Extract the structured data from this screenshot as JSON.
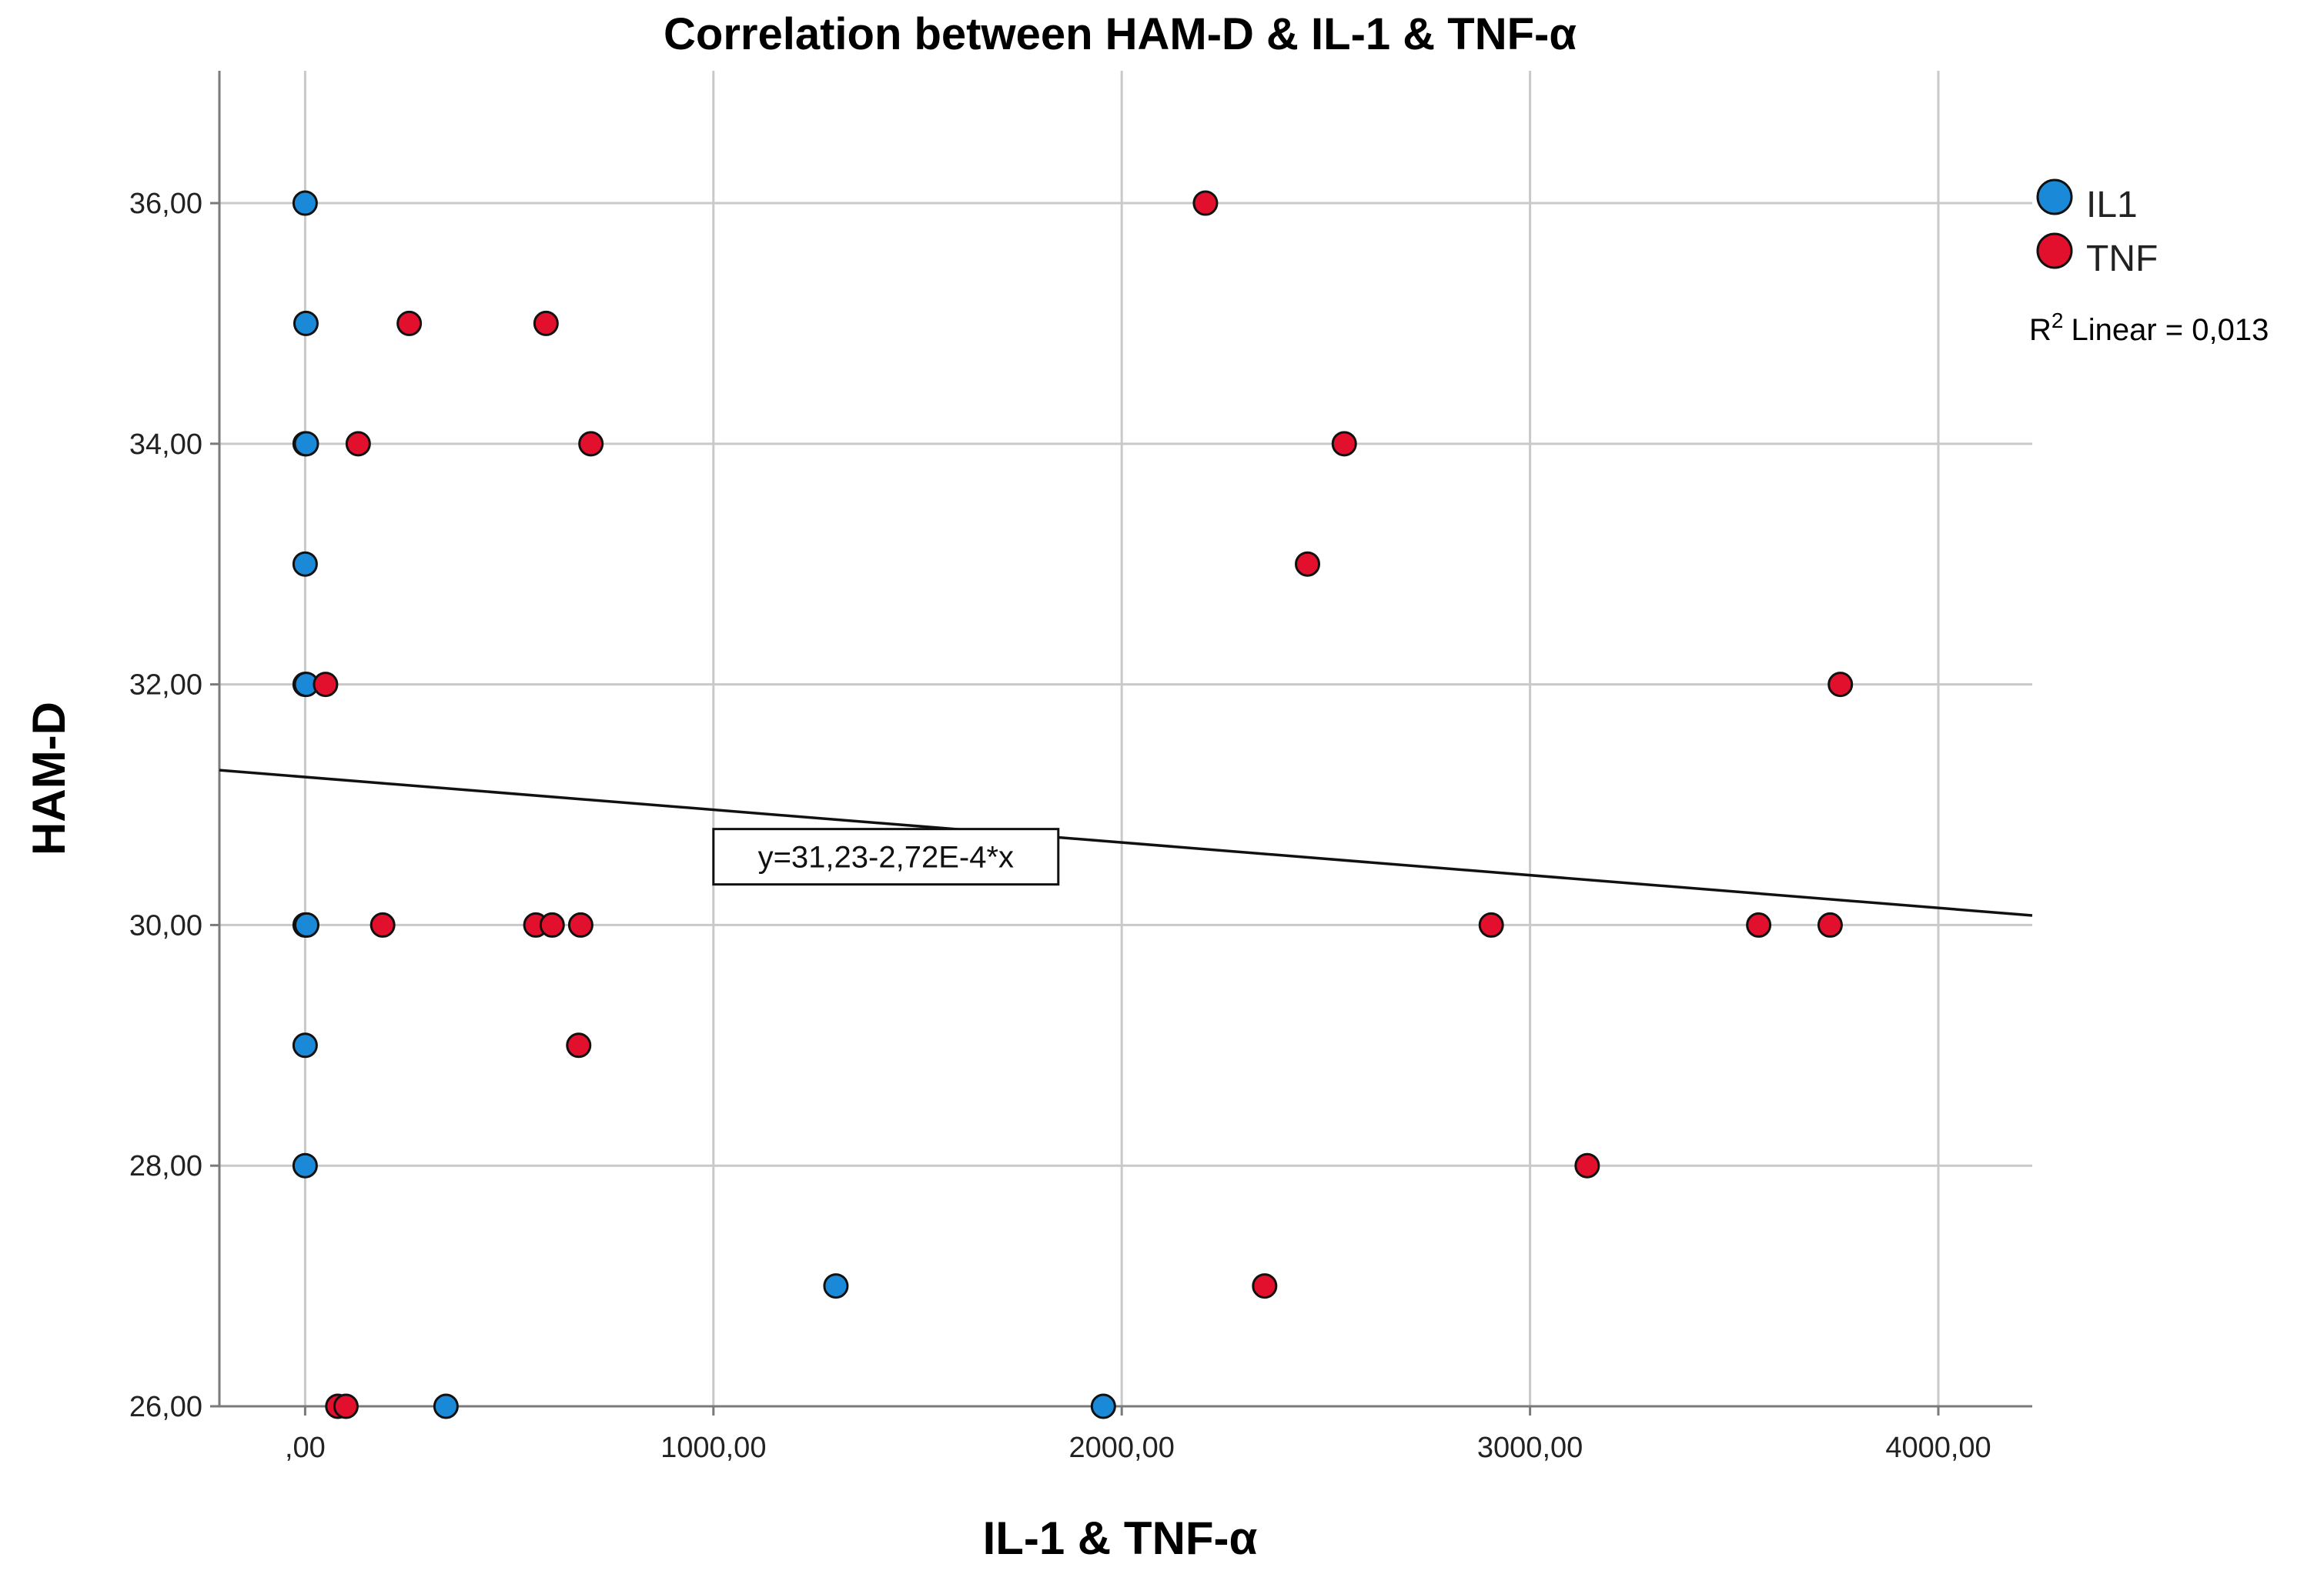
{
  "chart_data": {
    "type": "scatter",
    "title": "Correlation between HAM-D & IL-1 & TNF-α",
    "xlabel": "IL-1 & TNF-α",
    "ylabel": "HAM-D",
    "xlim": [
      -210,
      4230
    ],
    "ylim": [
      26,
      37.1
    ],
    "grid": true,
    "x_ticks": [
      0,
      1000,
      2000,
      3000,
      4000
    ],
    "x_tick_labels": [
      ",00",
      "1000,00",
      "2000,00",
      "3000,00",
      "4000,00"
    ],
    "y_ticks": [
      26,
      28,
      30,
      32,
      34,
      36
    ],
    "y_tick_labels": [
      "26,00",
      "28,00",
      "30,00",
      "32,00",
      "34,00",
      "36,00"
    ],
    "legend_position": "top-right",
    "series": [
      {
        "name": "IL1",
        "color": "#1a8ad8",
        "points": [
          {
            "x": 0,
            "y": 36
          },
          {
            "x": 2,
            "y": 35
          },
          {
            "x": 0,
            "y": 34
          },
          {
            "x": 3,
            "y": 34
          },
          {
            "x": 0,
            "y": 33
          },
          {
            "x": 0,
            "y": 32
          },
          {
            "x": 3,
            "y": 32
          },
          {
            "x": 0,
            "y": 30
          },
          {
            "x": 2,
            "y": 30
          },
          {
            "x": 4,
            "y": 30
          },
          {
            "x": 0,
            "y": 29
          },
          {
            "x": 0,
            "y": 28
          },
          {
            "x": 1300,
            "y": 27
          },
          {
            "x": 345,
            "y": 26
          },
          {
            "x": 1955,
            "y": 26
          }
        ]
      },
      {
        "name": "TNF",
        "color": "#e3102d",
        "points": [
          {
            "x": 2205,
            "y": 36
          },
          {
            "x": 255,
            "y": 35
          },
          {
            "x": 590,
            "y": 35
          },
          {
            "x": 130,
            "y": 34
          },
          {
            "x": 700,
            "y": 34
          },
          {
            "x": 2545,
            "y": 34
          },
          {
            "x": 2455,
            "y": 33
          },
          {
            "x": 50,
            "y": 32
          },
          {
            "x": 3760,
            "y": 32
          },
          {
            "x": 190,
            "y": 30
          },
          {
            "x": 565,
            "y": 30
          },
          {
            "x": 605,
            "y": 30
          },
          {
            "x": 675,
            "y": 30
          },
          {
            "x": 2905,
            "y": 30
          },
          {
            "x": 3560,
            "y": 30
          },
          {
            "x": 3735,
            "y": 30
          },
          {
            "x": 670,
            "y": 29
          },
          {
            "x": 3140,
            "y": 28
          },
          {
            "x": 2350,
            "y": 27
          },
          {
            "x": 80,
            "y": 26
          },
          {
            "x": 100,
            "y": 26
          }
        ]
      }
    ],
    "fit_line": {
      "intercept": 31.23,
      "slope": -0.000272,
      "label": "y=31,23-2,72E-4*x",
      "label_x": 1000,
      "r2_text": "Linear = 0,013",
      "r2_prefix": "R",
      "r2_superscript": "2"
    }
  }
}
